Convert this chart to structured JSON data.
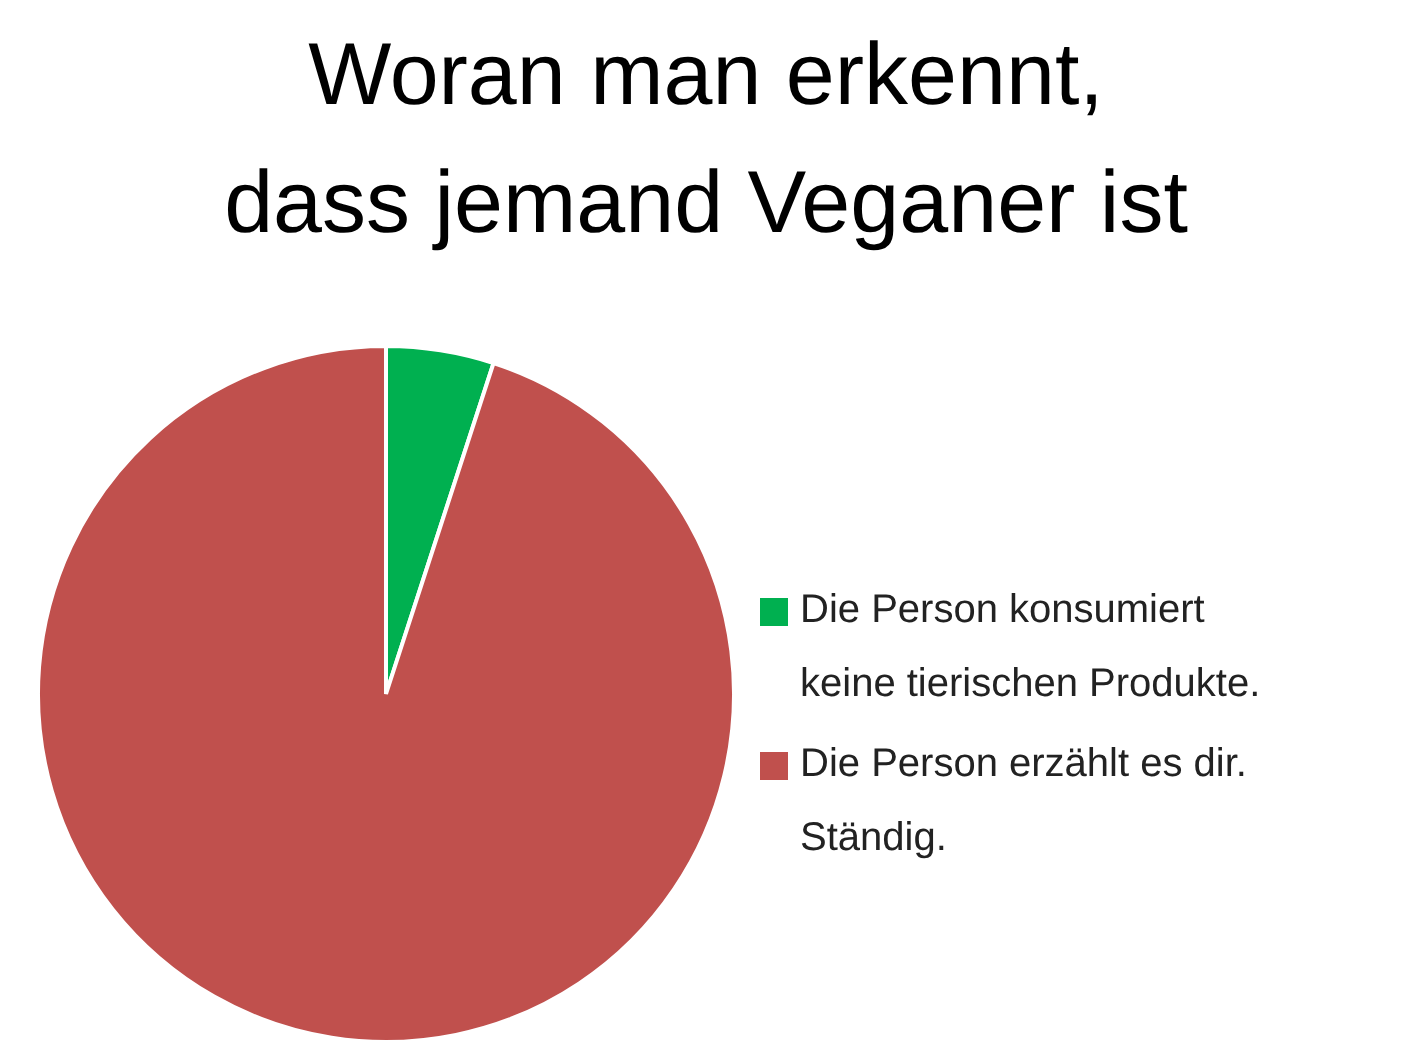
{
  "chart_data": {
    "type": "pie",
    "title": "Woran man erkennt,\ndass jemand Veganer ist",
    "categories": [
      "Die Person konsumiert\nkeine tierischen Produkte.",
      "Die Person erzählt es dir.\nStändig."
    ],
    "values": [
      5,
      95
    ],
    "colors": [
      "#00b050",
      "#c0504d"
    ],
    "legend": "right"
  }
}
